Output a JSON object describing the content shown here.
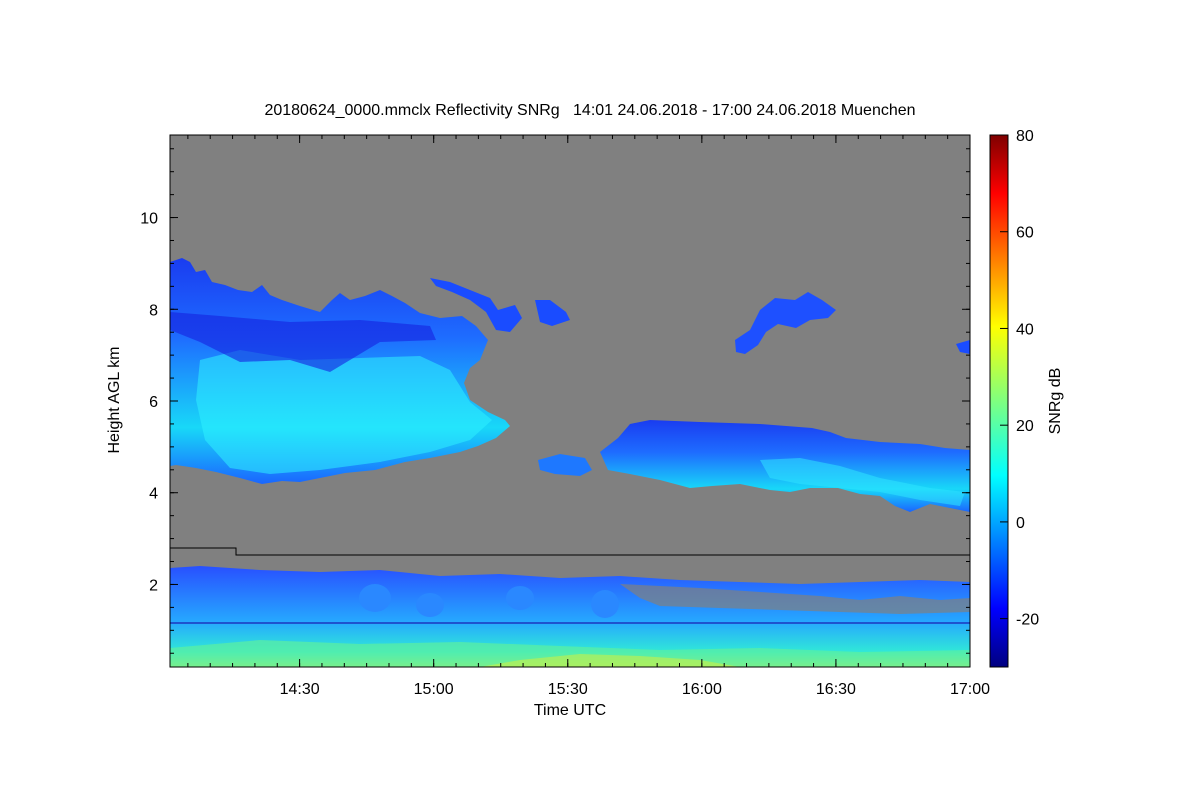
{
  "chart_data": {
    "type": "heatmap",
    "title": "20180624_0000.mmclx Reflectivity SNRg   14:01 24.06.2018 - 17:00 24.06.2018 Muenchen",
    "xlabel": "Time UTC",
    "ylabel": "Height AGL km",
    "x_range": [
      "14:01",
      "17:00"
    ],
    "y_range_km": [
      0.2,
      11.8
    ],
    "x_ticks": [
      "14:30",
      "15:00",
      "15:30",
      "16:00",
      "16:30",
      "17:00"
    ],
    "y_ticks": [
      "2",
      "4",
      "6",
      "8",
      "10"
    ],
    "colorbar": {
      "label": "SNRg dB",
      "range": [
        -30,
        80
      ],
      "ticks": [
        "-20",
        "0",
        "20",
        "40",
        "60",
        "80"
      ],
      "colormap": "jet"
    },
    "background_color": "#808080",
    "features": [
      {
        "time_start": "14:01",
        "time_end": "15:12",
        "height_km": [
          4.3,
          9.2
        ],
        "snr_db": [
          -20,
          10
        ]
      },
      {
        "time_start": "15:28",
        "time_end": "15:34",
        "height_km": [
          4.6,
          5.0
        ],
        "snr_db": [
          -20,
          5
        ]
      },
      {
        "time_start": "15:36",
        "time_end": "17:00",
        "height_km": [
          3.6,
          5.6
        ],
        "snr_db": [
          -20,
          10
        ]
      },
      {
        "time_start": "16:10",
        "time_end": "16:32",
        "height_km": [
          7.3,
          8.4
        ],
        "snr_db": [
          -20,
          -10
        ]
      },
      {
        "time_start": "14:01",
        "time_end": "17:00",
        "height_km": [
          0.2,
          2.4
        ],
        "snr_db": [
          -20,
          30
        ]
      }
    ],
    "line_height_km": [
      2.85,
      2.65
    ],
    "line_break_time": "14:16"
  }
}
